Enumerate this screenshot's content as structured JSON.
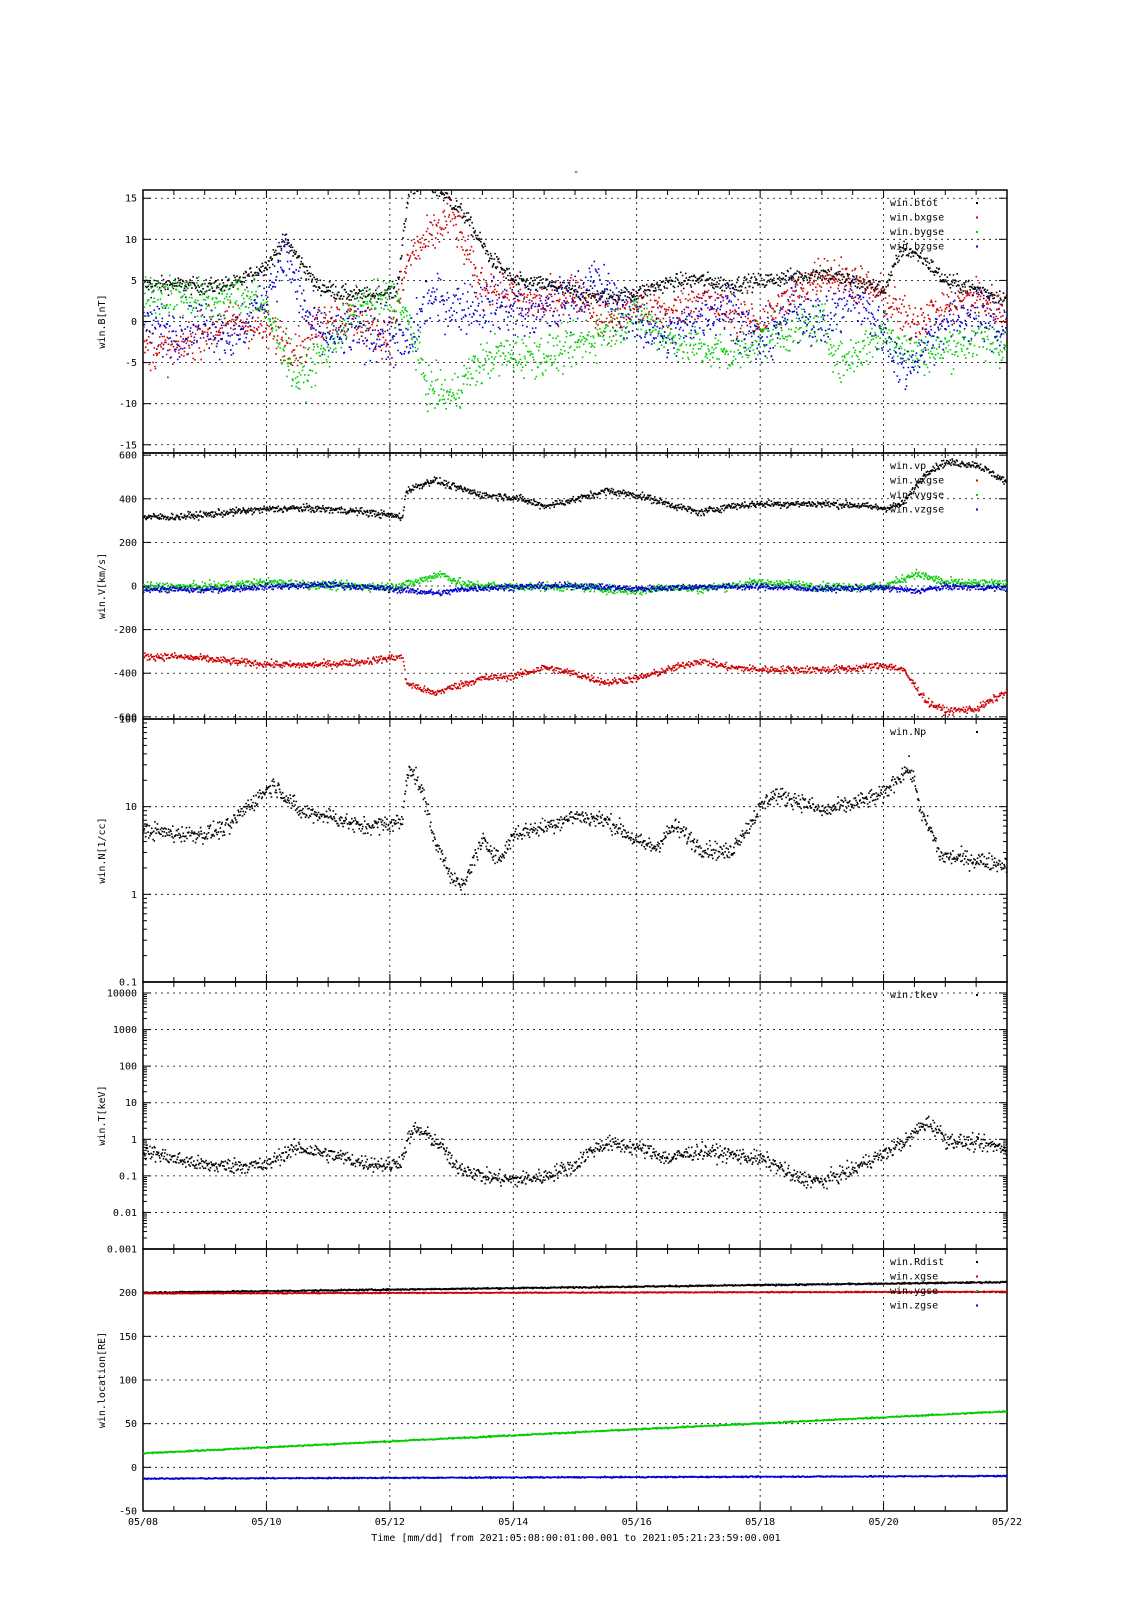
{
  "page": {
    "title": "-",
    "footer_label": "Time [mm/dd]  from 2021:05:08:00:01:00.001  to  2021:05:21:23:59:00.001"
  },
  "colors": {
    "black": "#000000",
    "red": "#cc0000",
    "green": "#00cc00",
    "blue": "#0000cc"
  },
  "chart_data": {
    "type": "scatter",
    "x_axis": {
      "range_days": [
        8,
        22
      ],
      "tick_labels": [
        "05/08",
        "05/10",
        "05/12",
        "05/14",
        "05/16",
        "05/18",
        "05/20",
        "05/22"
      ],
      "label": "Time [mm/dd]  from 2021:05:08:00:01:00.001  to  2021:05:21:23:59:00.001"
    },
    "panels": [
      {
        "id": "B",
        "ylabel": "win.B[nT]",
        "scale": "linear",
        "ylim": [
          -16,
          16
        ],
        "ytick_values": [
          -15,
          -10,
          -5,
          0,
          5,
          10,
          15
        ],
        "ytick_labels": [
          "-15",
          "-10",
          "-5",
          "0",
          "5",
          "10",
          "15"
        ],
        "legend": [
          "win.btot",
          "win.bxgse",
          "win.bygse",
          "win.bzgse"
        ],
        "series": [
          {
            "name": "win.btot",
            "color": "black",
            "x": [
              8,
              8.5,
              9,
              9.5,
              10,
              10.3,
              10.8,
              11.2,
              11.6,
              12.1,
              12.3,
              12.5,
              12.8,
              13.2,
              13.6,
              14,
              14.7,
              15.2,
              15.6,
              16,
              16.5,
              17,
              17.5,
              18,
              18.5,
              19,
              19.5,
              20,
              20.3,
              20.6,
              21,
              21.5,
              21.99
            ],
            "y": [
              4.5,
              4.6,
              4.3,
              4.7,
              7,
              10,
              4.5,
              3.5,
              3.2,
              3.8,
              16,
              17,
              16,
              13,
              8,
              5,
              4.3,
              3.2,
              3.1,
              3.5,
              4.8,
              5.2,
              4.5,
              5,
              5.5,
              6,
              5,
              4,
              9,
              8,
              5,
              4,
              2.8
            ],
            "spread": 0.7
          },
          {
            "name": "win.bxgse",
            "color": "red",
            "x": [
              8,
              8.5,
              9,
              9.5,
              10,
              10.5,
              11,
              11.5,
              12,
              12.3,
              12.6,
              13,
              13.4,
              14,
              14.5,
              15,
              15.5,
              16,
              16.5,
              17,
              17.5,
              18,
              18.5,
              19,
              19.5,
              20,
              20.4,
              20.7,
              21,
              21.5,
              21.99
            ],
            "y": [
              -3,
              -3.5,
              -1,
              0,
              -1,
              -3,
              1,
              0,
              -2,
              8,
              10,
              13,
              5,
              3,
              2,
              4,
              0,
              2,
              1,
              3,
              1,
              0,
              3,
              6,
              5,
              3,
              0,
              1,
              2,
              3,
              1
            ],
            "spread": 1.8
          },
          {
            "name": "win.bygse",
            "color": "green",
            "x": [
              8,
              8.5,
              9,
              9.5,
              9.8,
              10.2,
              10.5,
              11,
              11.5,
              12,
              12.3,
              12.6,
              13,
              13.3,
              13.7,
              14,
              14.5,
              15,
              15.5,
              16,
              16.5,
              17,
              17.5,
              18,
              18.5,
              19,
              19.3,
              19.7,
              20,
              20.5,
              21,
              21.5,
              21.99
            ],
            "y": [
              3,
              3.5,
              2.5,
              3,
              3.5,
              -2,
              -7,
              -3,
              2,
              3,
              0,
              -8,
              -9,
              -6,
              -4,
              -4,
              -4,
              -3,
              -1,
              1,
              -2,
              -3,
              -4,
              -2,
              -1,
              0,
              -5,
              -3,
              -1,
              -4,
              -3,
              -2,
              -3
            ],
            "spread": 1.8
          },
          {
            "name": "win.bzgse",
            "color": "blue",
            "x": [
              8,
              8.5,
              9,
              9.5,
              10,
              10.3,
              10.7,
              11,
              11.5,
              12,
              12.3,
              12.6,
              13,
              13.3,
              13.8,
              14.3,
              15,
              15.3,
              15.7,
              16,
              16.5,
              17,
              17.5,
              18,
              18.5,
              19,
              19.5,
              20,
              20.3,
              20.6,
              21,
              21.5,
              21.99
            ],
            "y": [
              0,
              -1,
              0,
              -2,
              4,
              8,
              0,
              -2,
              -1,
              -2,
              -3,
              3,
              2,
              2,
              2,
              1,
              3,
              5,
              2,
              0,
              -2,
              1,
              2,
              -3,
              2,
              0,
              3,
              -1,
              -6,
              -3,
              0,
              1,
              -1
            ],
            "spread": 2.2
          }
        ]
      },
      {
        "id": "V",
        "ylabel": "win.V[km/s]",
        "scale": "linear",
        "ylim": [
          -610,
          610
        ],
        "ytick_values": [
          -600,
          -400,
          -200,
          0,
          200,
          400,
          600
        ],
        "ytick_labels": [
          "-600",
          "-400",
          "-200",
          "0",
          "200",
          "400",
          "600"
        ],
        "legend": [
          "win.vp",
          "win.vxgse",
          "win.vygse",
          "win.vzgse"
        ],
        "series": [
          {
            "name": "win.vp",
            "color": "black",
            "x": [
              8,
              8.5,
              9,
              9.5,
              10,
              10.5,
              11,
              11.5,
              12.2,
              12.25,
              12.7,
              13,
              13.5,
              14,
              14.5,
              15,
              15.5,
              16,
              16.5,
              17,
              17.5,
              18,
              18.5,
              19,
              19.5,
              20,
              20.3,
              20.7,
              21,
              21.5,
              21.99
            ],
            "y": [
              320,
              320,
              330,
              345,
              355,
              360,
              355,
              345,
              320,
              440,
              490,
              460,
              420,
              410,
              370,
              400,
              440,
              420,
              380,
              340,
              370,
              380,
              380,
              380,
              375,
              360,
              380,
              530,
              570,
              560,
              480
            ],
            "spread": 12
          },
          {
            "name": "win.vxgse",
            "color": "red",
            "x": [
              8,
              8.5,
              9,
              9.5,
              10,
              10.5,
              11,
              11.5,
              12.2,
              12.25,
              12.7,
              13,
              13.5,
              14,
              14.5,
              15,
              15.5,
              16,
              16.5,
              17,
              17.5,
              18,
              18.5,
              19,
              19.5,
              20,
              20.3,
              20.7,
              21,
              21.5,
              21.99
            ],
            "y": [
              -320,
              -320,
              -330,
              -345,
              -355,
              -360,
              -355,
              -345,
              -320,
              -440,
              -490,
              -460,
              -420,
              -410,
              -370,
              -400,
              -440,
              -420,
              -380,
              -340,
              -370,
              -380,
              -380,
              -380,
              -375,
              -360,
              -380,
              -530,
              -570,
              -560,
              -480
            ],
            "spread": 12
          },
          {
            "name": "win.vygse",
            "color": "green",
            "x": [
              8,
              9,
              10,
              11,
              12,
              12.4,
              12.8,
              13.2,
              14,
              15,
              16,
              16.5,
              17,
              18,
              19,
              20,
              20.5,
              21,
              21.99
            ],
            "y": [
              0,
              0,
              20,
              5,
              0,
              20,
              60,
              10,
              0,
              0,
              -20,
              0,
              -10,
              20,
              0,
              0,
              60,
              20,
              10
            ],
            "spread": 14
          },
          {
            "name": "win.vzgse",
            "color": "blue",
            "x": [
              8,
              9,
              10,
              11,
              12,
              12.4,
              12.8,
              13.2,
              14,
              15,
              16,
              17,
              18,
              19,
              20,
              20.5,
              21,
              21.99
            ],
            "y": [
              -10,
              -15,
              0,
              10,
              -10,
              -20,
              -30,
              -10,
              0,
              5,
              -10,
              0,
              0,
              -10,
              -5,
              -20,
              0,
              -5
            ],
            "spread": 10
          }
        ]
      },
      {
        "id": "N",
        "ylabel": "win.N[1/cc]",
        "scale": "log",
        "ylim": [
          0.1,
          100
        ],
        "ytick_values": [
          0.1,
          1,
          10,
          100
        ],
        "ytick_labels": [
          "0.1",
          "1",
          "10",
          "100"
        ],
        "legend": [
          "win.Np"
        ],
        "series": [
          {
            "name": "win.Np",
            "color": "black",
            "x": [
              8,
              8.5,
              9,
              9.4,
              9.8,
              10.1,
              10.5,
              11,
              11.5,
              12,
              12.2,
              12.3,
              12.5,
              12.7,
              13,
              13.2,
              13.5,
              13.8,
              14,
              14.5,
              15,
              15.5,
              16,
              16.3,
              16.6,
              17,
              17.5,
              17.8,
              18.2,
              18.6,
              19,
              19.5,
              20,
              20.4,
              20.6,
              20.9,
              21.3,
              21.7,
              21.99
            ],
            "y": [
              5.5,
              5,
              5,
              6,
              12,
              18,
              9,
              8,
              6,
              6.5,
              7,
              30,
              15,
              4,
              1.5,
              1.2,
              4,
              2.5,
              5,
              6,
              8,
              7,
              4,
              3.5,
              6,
              3.5,
              3,
              6,
              14,
              12,
              9,
              11,
              14,
              28,
              8,
              2.8,
              2.6,
              2.4,
              2.2
            ],
            "spread_decades": 0.07
          }
        ]
      },
      {
        "id": "T",
        "ylabel": "win.T[keV]",
        "scale": "log",
        "ylim": [
          0.001,
          20000
        ],
        "ytick_values": [
          0.001,
          0.01,
          0.1,
          1,
          10,
          100,
          1000,
          10000
        ],
        "ytick_labels": [
          "0.001",
          "0.01",
          "0.1",
          "1",
          "10",
          "100",
          "1000",
          "10000"
        ],
        "legend": [
          "win.tkev"
        ],
        "series": [
          {
            "name": "win.tkev",
            "color": "black",
            "x": [
              8,
              8.5,
              9,
              9.5,
              10,
              10.5,
              11,
              11.5,
              12,
              12.2,
              12.4,
              12.7,
              13,
              13.5,
              14,
              14.5,
              15,
              15.5,
              16,
              16.5,
              17,
              17.5,
              18,
              18.5,
              19,
              19.5,
              20,
              20.4,
              20.7,
              21,
              21.5,
              21.99
            ],
            "y": [
              0.5,
              0.3,
              0.2,
              0.2,
              0.2,
              0.6,
              0.4,
              0.25,
              0.2,
              0.3,
              2,
              1,
              0.2,
              0.1,
              0.08,
              0.1,
              0.2,
              0.8,
              0.6,
              0.3,
              0.5,
              0.4,
              0.3,
              0.1,
              0.07,
              0.15,
              0.4,
              1,
              3,
              1,
              0.8,
              0.6
            ],
            "spread_decades": 0.15
          }
        ]
      },
      {
        "id": "location",
        "ylabel": "win.location[RE]",
        "scale": "linear",
        "ylim": [
          -50,
          250
        ],
        "ytick_values": [
          -50,
          0,
          50,
          100,
          150,
          200
        ],
        "ytick_labels": [
          "-50",
          "0",
          "50",
          "100",
          "150",
          "200"
        ],
        "legend": [
          "win.Rdist",
          "win.xgse",
          "win.ygse",
          "win.zgse"
        ],
        "series": [
          {
            "name": "win.Rdist",
            "color": "black",
            "x": [
              8,
              21.99
            ],
            "y": [
              201,
              213
            ],
            "spread": 0.6
          },
          {
            "name": "win.xgse",
            "color": "red",
            "x": [
              8,
              21.99
            ],
            "y": [
              200,
              202
            ],
            "spread": 0.4
          },
          {
            "name": "win.ygse",
            "color": "green",
            "x": [
              8,
              21.99
            ],
            "y": [
              17,
              65
            ],
            "spread": 0.6
          },
          {
            "name": "win.zgse",
            "color": "blue",
            "x": [
              8,
              21.99
            ],
            "y": [
              -12,
              -9
            ],
            "spread": 0.5
          }
        ]
      }
    ]
  }
}
